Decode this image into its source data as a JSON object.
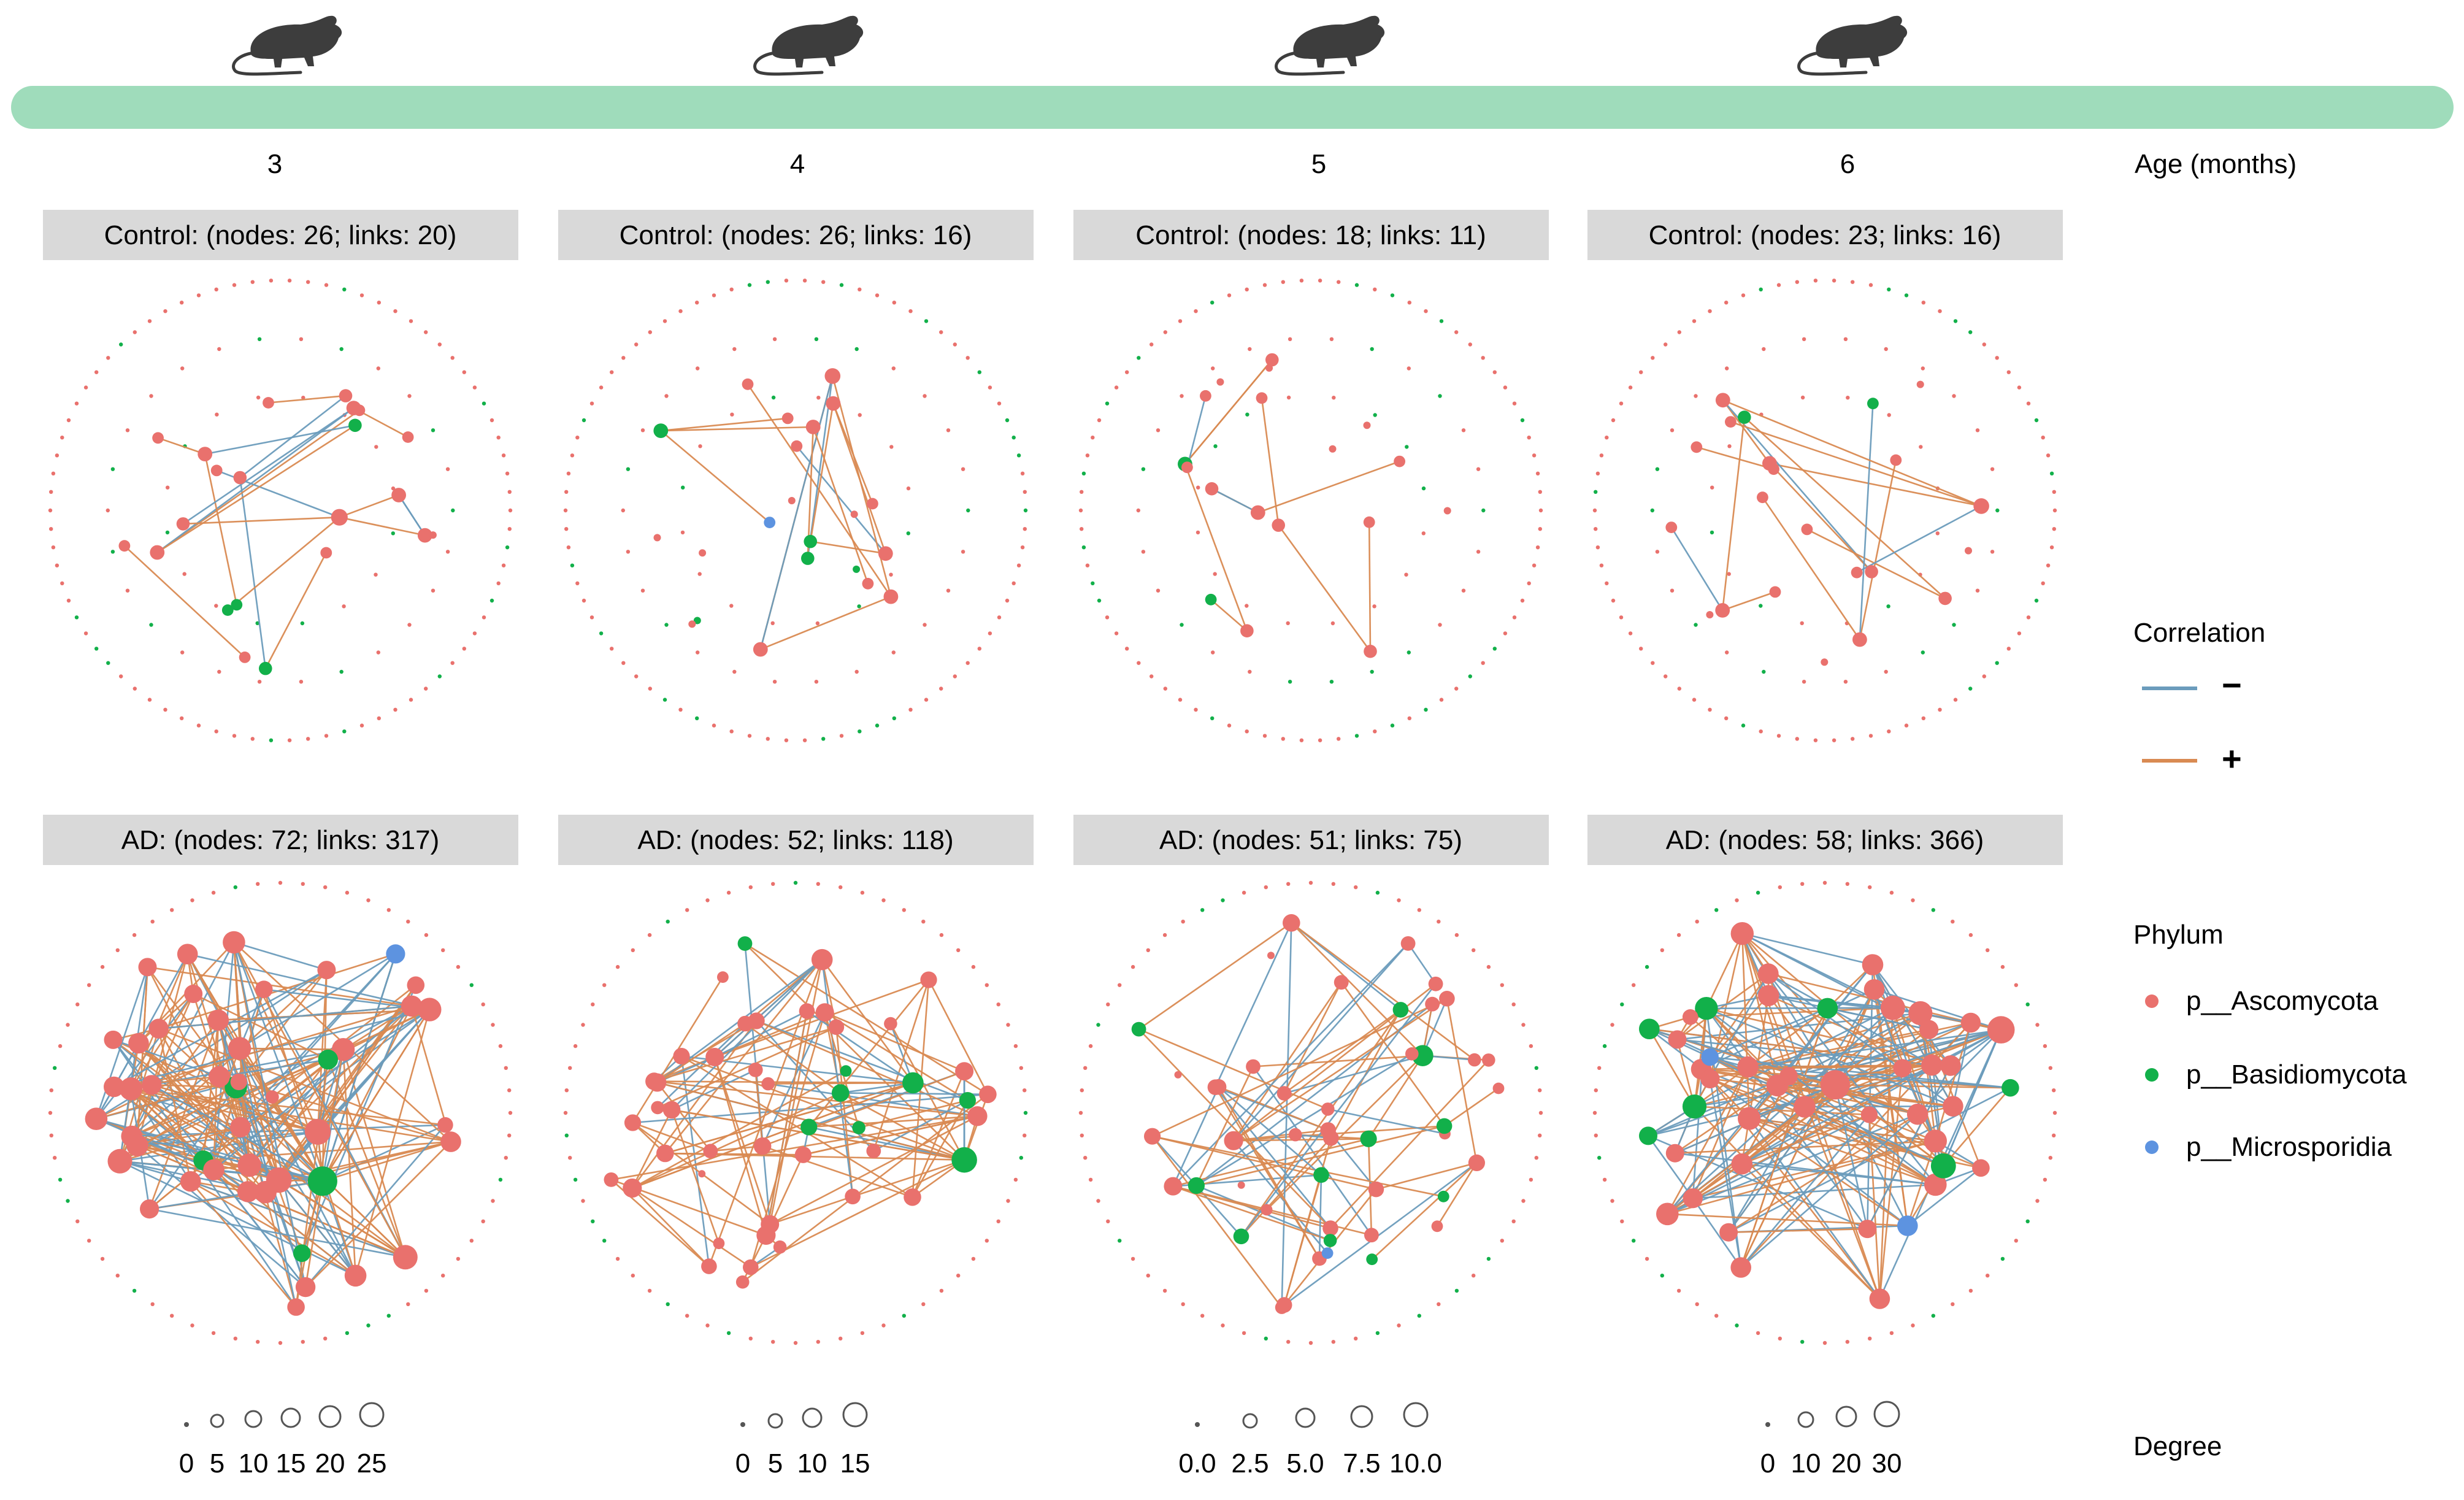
{
  "timeline": {
    "axis_label": "Age (months)",
    "ages": [
      "3",
      "4",
      "5",
      "6"
    ],
    "bar_color": "#9fdcbb",
    "mouse_icon": "mouse-icon"
  },
  "panels": [
    {
      "title": "Control: (nodes: 26; links: 20)",
      "group": "Control",
      "age": "3",
      "nodes": 26,
      "links": 20
    },
    {
      "title": "Control: (nodes: 26; links: 16)",
      "group": "Control",
      "age": "4",
      "nodes": 26,
      "links": 16
    },
    {
      "title": "Control: (nodes: 18; links: 11)",
      "group": "Control",
      "age": "5",
      "nodes": 18,
      "links": 11
    },
    {
      "title": "Control: (nodes: 23; links: 16)",
      "group": "Control",
      "age": "6",
      "nodes": 23,
      "links": 16
    },
    {
      "title": "AD: (nodes: 72; links: 317)",
      "group": "AD",
      "age": "3",
      "nodes": 72,
      "links": 317
    },
    {
      "title": "AD: (nodes: 52; links: 118)",
      "group": "AD",
      "age": "4",
      "nodes": 52,
      "links": 118
    },
    {
      "title": "AD: (nodes: 51; links: 75)",
      "group": "AD",
      "age": "5",
      "nodes": 51,
      "links": 75
    },
    {
      "title": "AD: (nodes: 58; links: 366)",
      "group": "AD",
      "age": "6",
      "nodes": 58,
      "links": 366
    }
  ],
  "degree_scales": [
    [
      "0",
      "5",
      "10",
      "15",
      "20",
      "25"
    ],
    [
      "0",
      "5",
      "10",
      "15"
    ],
    [
      "0.0",
      "2.5",
      "5.0",
      "7.5",
      "10.0"
    ],
    [
      "0",
      "10",
      "20",
      "30"
    ]
  ],
  "legend": {
    "correlation": {
      "title": "Correlation",
      "items": [
        {
          "label": "−",
          "color": "#6b9cbc"
        },
        {
          "label": "+",
          "color": "#d98a52"
        }
      ]
    },
    "phylum": {
      "title": "Phylum",
      "items": [
        {
          "label": "p__Ascomycota",
          "color": "#e9716d"
        },
        {
          "label": "p__Basidiomycota",
          "color": "#12b04a"
        },
        {
          "label": "p__Microsporidia",
          "color": "#5d93e0"
        }
      ]
    },
    "degree": {
      "title": "Degree"
    }
  },
  "colors": {
    "strip": "#d9d9d9",
    "ascomycota": "#e9716d",
    "basidiomycota": "#12b04a",
    "microsporidia": "#5d93e0",
    "negative": "#6b9cbc",
    "positive": "#d98a52",
    "icon": "#3d3d3d"
  }
}
